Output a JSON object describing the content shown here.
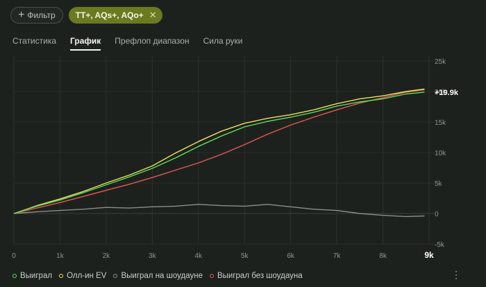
{
  "filter": {
    "add_label": "Фильтр",
    "active_label": "TT+, AQs+, AQo+"
  },
  "tabs": [
    {
      "label": "Статистика"
    },
    {
      "label": "График"
    },
    {
      "label": "Префлоп диапазон"
    },
    {
      "label": "Сила руки"
    }
  ],
  "chart_data": {
    "type": "line",
    "x_ticks": [
      "0",
      "1k",
      "2k",
      "3k",
      "4k",
      "5k",
      "6k",
      "7k",
      "8k",
      "9k"
    ],
    "y_ticks": [
      "25k",
      "20k",
      "15k",
      "10k",
      "5k",
      "0",
      "-5k"
    ],
    "xlim": [
      0,
      9000
    ],
    "ylim": [
      -5000,
      25000
    ],
    "end_label": "+19.9k",
    "series": [
      {
        "name": "Выиграл",
        "color": "#5fdc5a",
        "x": [
          0,
          500,
          1000,
          1500,
          2000,
          2500,
          3000,
          3500,
          4000,
          4500,
          5000,
          5500,
          6000,
          6500,
          7000,
          7500,
          8000,
          8500,
          8900
        ],
        "y": [
          0,
          1200,
          2200,
          3400,
          4700,
          6000,
          7400,
          9100,
          11000,
          12700,
          14200,
          15100,
          15800,
          16600,
          17600,
          18300,
          18800,
          19600,
          19900
        ]
      },
      {
        "name": "Олл-ин EV",
        "color": "#e9e35a",
        "x": [
          0,
          500,
          1000,
          1500,
          2000,
          2500,
          3000,
          3500,
          4000,
          4500,
          5000,
          5500,
          6000,
          6500,
          7000,
          7500,
          8000,
          8500,
          8900
        ],
        "y": [
          0,
          1300,
          2400,
          3600,
          5000,
          6300,
          7800,
          9900,
          11800,
          13500,
          14800,
          15600,
          16200,
          17000,
          18000,
          18800,
          19300,
          20000,
          20400
        ]
      },
      {
        "name": "Выиграл на шоудауне",
        "color": "#8a8f8b",
        "x": [
          0,
          500,
          1000,
          1500,
          2000,
          2500,
          3000,
          3500,
          4000,
          4500,
          5000,
          5500,
          6000,
          6500,
          7000,
          7500,
          8000,
          8500,
          8900
        ],
        "y": [
          0,
          300,
          500,
          700,
          1000,
          900,
          1100,
          1200,
          1500,
          1300,
          1200,
          1500,
          1100,
          700,
          500,
          0,
          -300,
          -500,
          -400
        ]
      },
      {
        "name": "Выиграл без шоудауна",
        "color": "#e55a4f",
        "x": [
          0,
          500,
          1000,
          1500,
          2000,
          2500,
          3000,
          3500,
          4000,
          4500,
          5000,
          5500,
          6000,
          6500,
          7000,
          7500,
          8000,
          8500,
          8900
        ],
        "y": [
          0,
          900,
          1800,
          2800,
          3800,
          4800,
          5900,
          7100,
          8300,
          9700,
          11300,
          13000,
          14500,
          15800,
          17000,
          18100,
          19000,
          19900,
          20300
        ]
      }
    ]
  }
}
